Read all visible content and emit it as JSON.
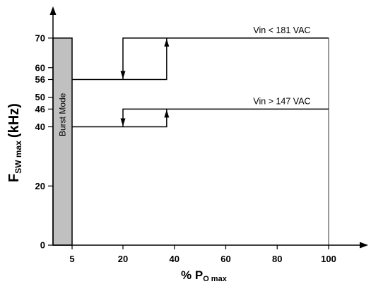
{
  "chart_data": {
    "type": "line",
    "xlabel": {
      "main": "% P",
      "sub": "O max"
    },
    "ylabel": {
      "main": "F",
      "sub": "SW max",
      "unit": "(kHz)"
    },
    "x_ticks": [
      5,
      20,
      40,
      60,
      80,
      100
    ],
    "y_ticks": [
      0,
      20,
      40,
      46,
      50,
      56,
      60,
      70
    ],
    "xlim": [
      0,
      115
    ],
    "ylim": [
      0,
      80
    ],
    "burst_region": {
      "label": "Burst Mode",
      "x": [
        0,
        5
      ],
      "y": [
        0,
        70
      ],
      "color": "#c0c0c0"
    },
    "series": [
      {
        "name": "Vin < 181  VAC",
        "segments": [
          [
            [
              5,
              56
            ],
            [
              37,
              56
            ],
            [
              37,
              70
            ]
          ],
          [
            [
              20,
              56
            ],
            [
              20,
              70
            ],
            [
              100,
              70
            ]
          ]
        ],
        "arrows": [
          {
            "at": [
              20,
              56
            ],
            "dir": "down"
          },
          {
            "at": [
              37,
              70
            ],
            "dir": "up"
          }
        ]
      },
      {
        "name": "Vin > 147  VAC",
        "segments": [
          [
            [
              5,
              40
            ],
            [
              37,
              40
            ],
            [
              37,
              46
            ]
          ],
          [
            [
              20,
              40
            ],
            [
              20,
              46
            ],
            [
              100,
              46
            ]
          ]
        ],
        "arrows": [
          {
            "at": [
              20,
              40
            ],
            "dir": "down"
          },
          {
            "at": [
              37,
              46
            ],
            "dir": "up"
          }
        ]
      }
    ],
    "vertical_line_at": 100
  }
}
